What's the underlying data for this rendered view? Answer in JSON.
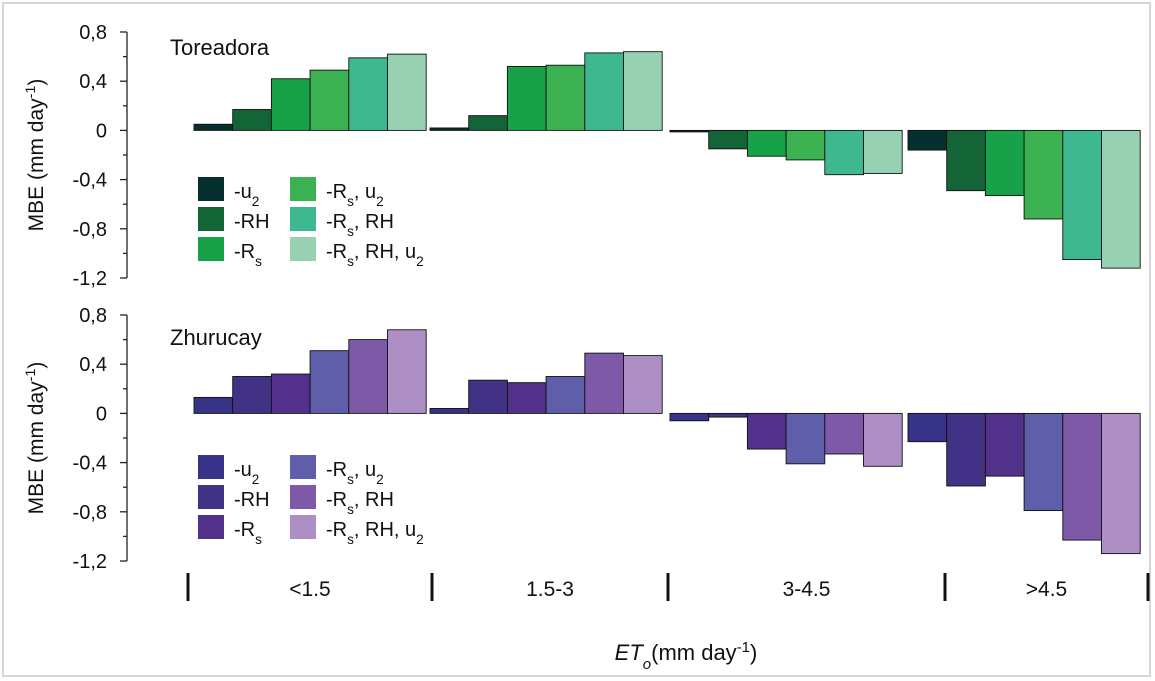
{
  "chart_data": [
    {
      "type": "bar",
      "title": "Toreadora",
      "ylabel": "MBE (mm day-1)",
      "ylim": [
        -1.2,
        0.8
      ],
      "yticks": [
        "0,8",
        "0,4",
        "0",
        "-0,4",
        "-0,8",
        "-1,2"
      ],
      "categories": [
        "<1.5",
        "1.5-3",
        "3-4.5",
        ">4.5"
      ],
      "series": [
        {
          "name": "-u2",
          "color": "#06302f",
          "values": [
            0.05,
            0.02,
            -0.01,
            -0.16
          ]
        },
        {
          "name": "-RH",
          "color": "#136437",
          "values": [
            0.17,
            0.12,
            -0.15,
            -0.49
          ]
        },
        {
          "name": "-Rs",
          "color": "#17a24a",
          "values": [
            0.42,
            0.52,
            -0.21,
            -0.53
          ]
        },
        {
          "name": "-Rs, u2",
          "color": "#3bb152",
          "values": [
            0.49,
            0.53,
            -0.24,
            -0.72
          ]
        },
        {
          "name": "-Rs, RH",
          "color": "#3db88f",
          "values": [
            0.59,
            0.63,
            -0.36,
            -1.05
          ]
        },
        {
          "name": "-Rs, RH, u2",
          "color": "#98d1b2",
          "values": [
            0.62,
            0.64,
            -0.35,
            -1.12
          ]
        }
      ],
      "legend": "left-middle"
    },
    {
      "type": "bar",
      "title": "Zhurucay",
      "ylabel": "MBE (mm day-1)",
      "ylim": [
        -1.2,
        0.8
      ],
      "yticks": [
        "0,8",
        "0,4",
        "0",
        "-0,4",
        "-0,8",
        "-1,2"
      ],
      "categories": [
        "<1.5",
        "1.5-3",
        "3-4.5",
        ">4.5"
      ],
      "series": [
        {
          "name": "-u2",
          "color": "#363389",
          "values": [
            0.13,
            0.04,
            -0.06,
            -0.23
          ]
        },
        {
          "name": "-RH",
          "color": "#413285",
          "values": [
            0.3,
            0.27,
            -0.03,
            -0.59
          ]
        },
        {
          "name": "-Rs",
          "color": "#51318a",
          "values": [
            0.32,
            0.25,
            -0.29,
            -0.51
          ]
        },
        {
          "name": "-Rs, u2",
          "color": "#5e5eaa",
          "values": [
            0.51,
            0.3,
            -0.41,
            -0.79
          ]
        },
        {
          "name": "-Rs, RH",
          "color": "#7d59a8",
          "values": [
            0.6,
            0.49,
            -0.33,
            -1.03
          ]
        },
        {
          "name": "-Rs, RH, u2",
          "color": "#ad8fc5",
          "values": [
            0.68,
            0.47,
            -0.43,
            -1.14
          ]
        }
      ],
      "legend": "left-middle"
    }
  ],
  "xaxis": {
    "label": "ETo(mm day-1)",
    "categories": [
      "<1.5",
      "1.5-3",
      "3-4.5",
      ">4.5"
    ]
  }
}
